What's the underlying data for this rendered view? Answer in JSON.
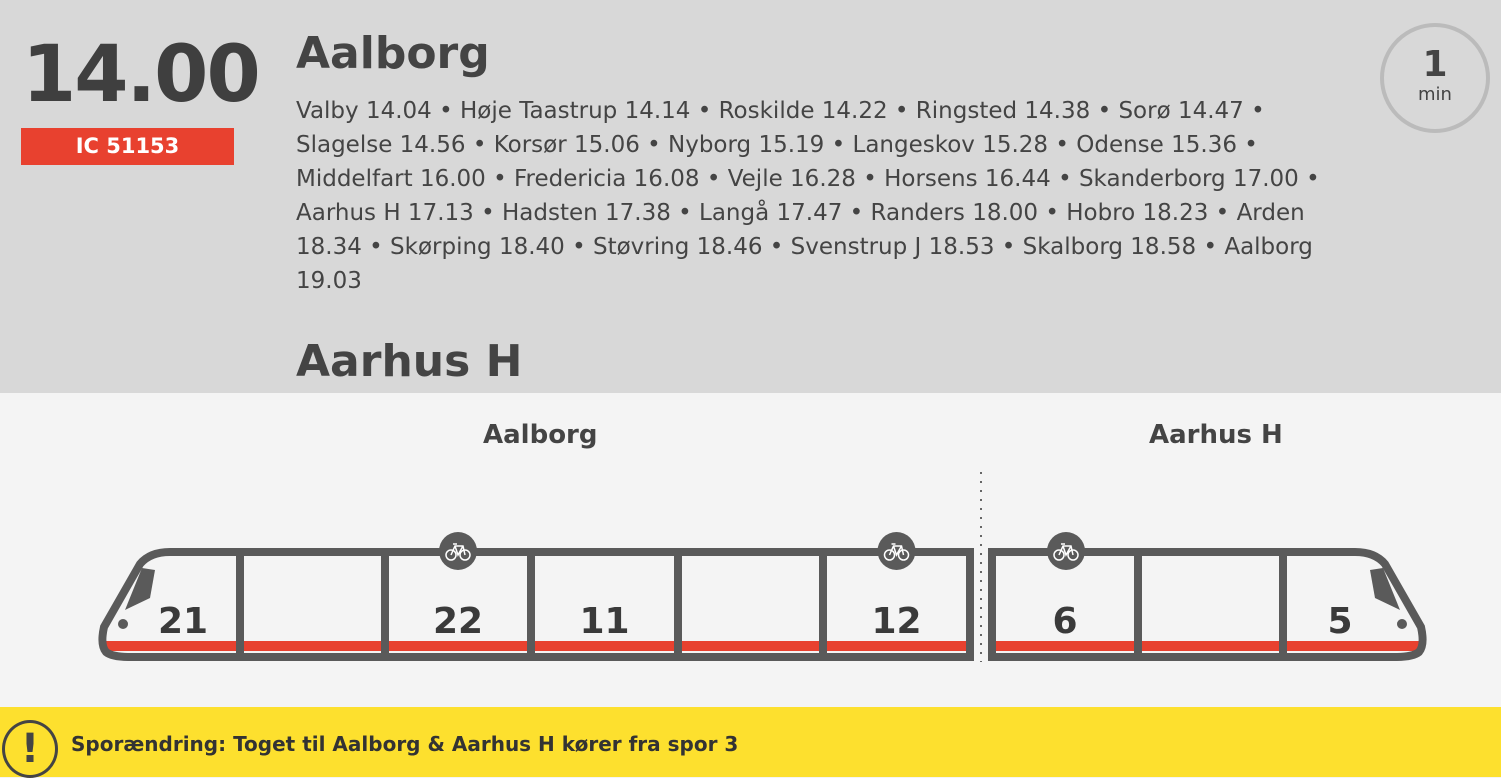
{
  "departure": {
    "time": "14.00",
    "train_id": "IC 51153",
    "destination": "Aalborg",
    "minutes": "1",
    "minutes_unit": "min",
    "stops": "Valby 14.04 • Høje Taastrup 14.14 • Roskilde 14.22 • Ringsted 14.38 • Sorø 14.47 • Slagelse 14.56 • Korsør 15.06 • Nyborg 15.19 • Langeskov 15.28 • Odense 15.36 • Middelfart 16.00 • Fredericia 16.08 • Vejle 16.28 • Horsens 16.44 • Skanderborg 17.00 • Aarhus H 17.13 • Hadsten 17.38 • Langå 17.47 • Randers 18.00 • Hobro 18.23 • Arden 18.34 • Skørping 18.40 • Støvring 18.46 • Svenstrup J 18.53 • Skalborg 18.58 • Aalborg 19.03",
    "second_destination": "Aarhus H"
  },
  "train": {
    "units": [
      {
        "label": "Aalborg",
        "cars": [
          {
            "number": "21",
            "bike": false
          },
          {
            "number": "",
            "bike": false
          },
          {
            "number": "22",
            "bike": true
          },
          {
            "number": "11",
            "bike": false
          },
          {
            "number": "",
            "bike": false
          },
          {
            "number": "12",
            "bike": true
          }
        ]
      },
      {
        "label": "Aarhus H",
        "cars": [
          {
            "number": "6",
            "bike": true
          },
          {
            "number": "",
            "bike": false
          },
          {
            "number": "5",
            "bike": false
          }
        ]
      }
    ],
    "colors": {
      "body": "#5a5a5a",
      "stripe": "#e8412f"
    }
  },
  "alert": {
    "icon": "exclamation-icon",
    "text": "Sporændring: Toget til Aalborg & Aarhus H kører fra spor 3",
    "color": "#fde02e"
  }
}
